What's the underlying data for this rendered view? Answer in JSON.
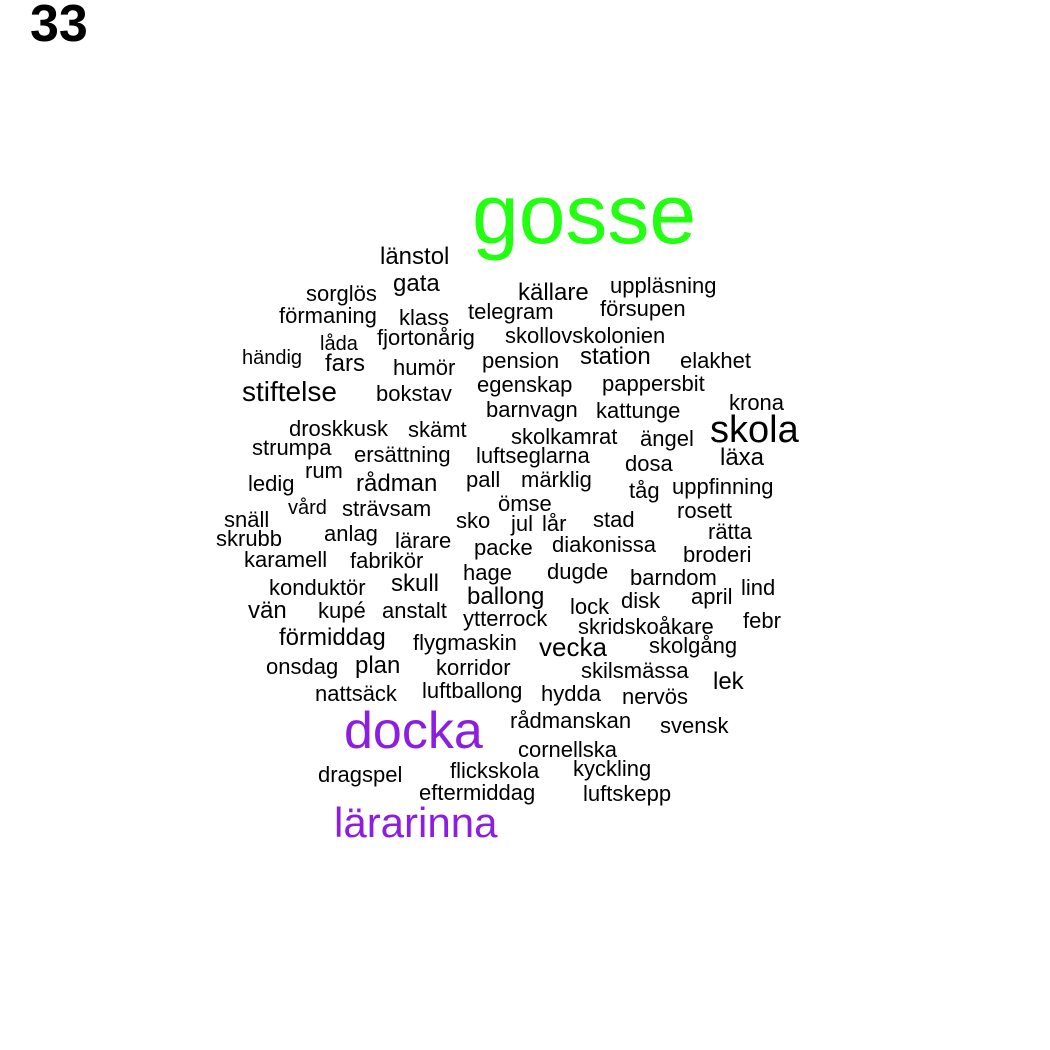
{
  "page_number": "33",
  "colors": {
    "highlight_green": "#22ff11",
    "highlight_purple": "#8b1ee0",
    "default": "#000000"
  },
  "words": [
    {
      "text": "gosse",
      "emphasis": "green"
    },
    {
      "text": "docka",
      "emphasis": "purple"
    },
    {
      "text": "lärarinna",
      "emphasis": "purple"
    },
    {
      "text": "skola"
    },
    {
      "text": "stiftelse"
    },
    {
      "text": "länstol"
    },
    {
      "text": "gata"
    },
    {
      "text": "källare"
    },
    {
      "text": "uppläsning"
    },
    {
      "text": "sorglös"
    },
    {
      "text": "försupen"
    },
    {
      "text": "förmaning"
    },
    {
      "text": "klass"
    },
    {
      "text": "telegram"
    },
    {
      "text": "låda"
    },
    {
      "text": "fjortonårig"
    },
    {
      "text": "skollovskolonien"
    },
    {
      "text": "händig"
    },
    {
      "text": "fars"
    },
    {
      "text": "humör"
    },
    {
      "text": "pension"
    },
    {
      "text": "station"
    },
    {
      "text": "elakhet"
    },
    {
      "text": "egenskap"
    },
    {
      "text": "pappersbit"
    },
    {
      "text": "bokstav"
    },
    {
      "text": "barnvagn"
    },
    {
      "text": "kattunge"
    },
    {
      "text": "krona"
    },
    {
      "text": "droskkusk"
    },
    {
      "text": "skämt"
    },
    {
      "text": "skolkamrat"
    },
    {
      "text": "ängel"
    },
    {
      "text": "strumpa"
    },
    {
      "text": "ersättning"
    },
    {
      "text": "luftseglarna"
    },
    {
      "text": "dosa"
    },
    {
      "text": "läxa"
    },
    {
      "text": "rum"
    },
    {
      "text": "ledig"
    },
    {
      "text": "rådman"
    },
    {
      "text": "pall"
    },
    {
      "text": "märklig"
    },
    {
      "text": "tåg"
    },
    {
      "text": "uppfinning"
    },
    {
      "text": "vård"
    },
    {
      "text": "strävsam"
    },
    {
      "text": "ömse"
    },
    {
      "text": "snäll"
    },
    {
      "text": "sko"
    },
    {
      "text": "jul"
    },
    {
      "text": "lår"
    },
    {
      "text": "stad"
    },
    {
      "text": "rosett"
    },
    {
      "text": "anlag"
    },
    {
      "text": "rätta"
    },
    {
      "text": "skrubb"
    },
    {
      "text": "lärare"
    },
    {
      "text": "packe"
    },
    {
      "text": "diakonissa"
    },
    {
      "text": "broderi"
    },
    {
      "text": "karamell"
    },
    {
      "text": "fabrikör"
    },
    {
      "text": "hage"
    },
    {
      "text": "dugde"
    },
    {
      "text": "barndom"
    },
    {
      "text": "konduktör"
    },
    {
      "text": "skull"
    },
    {
      "text": "lind"
    },
    {
      "text": "ballong"
    },
    {
      "text": "disk"
    },
    {
      "text": "april"
    },
    {
      "text": "vän"
    },
    {
      "text": "kupé"
    },
    {
      "text": "anstalt"
    },
    {
      "text": "lock"
    },
    {
      "text": "ytterrock"
    },
    {
      "text": "skridskoåkare"
    },
    {
      "text": "febr"
    },
    {
      "text": "förmiddag"
    },
    {
      "text": "flygmaskin"
    },
    {
      "text": "vecka"
    },
    {
      "text": "skolgång"
    },
    {
      "text": "onsdag"
    },
    {
      "text": "plan"
    },
    {
      "text": "korridor"
    },
    {
      "text": "skilsmässa"
    },
    {
      "text": "lek"
    },
    {
      "text": "nattsäck"
    },
    {
      "text": "luftballong"
    },
    {
      "text": "hydda"
    },
    {
      "text": "nervös"
    },
    {
      "text": "rådmanskan"
    },
    {
      "text": "svensk"
    },
    {
      "text": "cornellska"
    },
    {
      "text": "dragspel"
    },
    {
      "text": "flickskola"
    },
    {
      "text": "kyckling"
    },
    {
      "text": "eftermiddag"
    },
    {
      "text": "luftskepp"
    }
  ]
}
